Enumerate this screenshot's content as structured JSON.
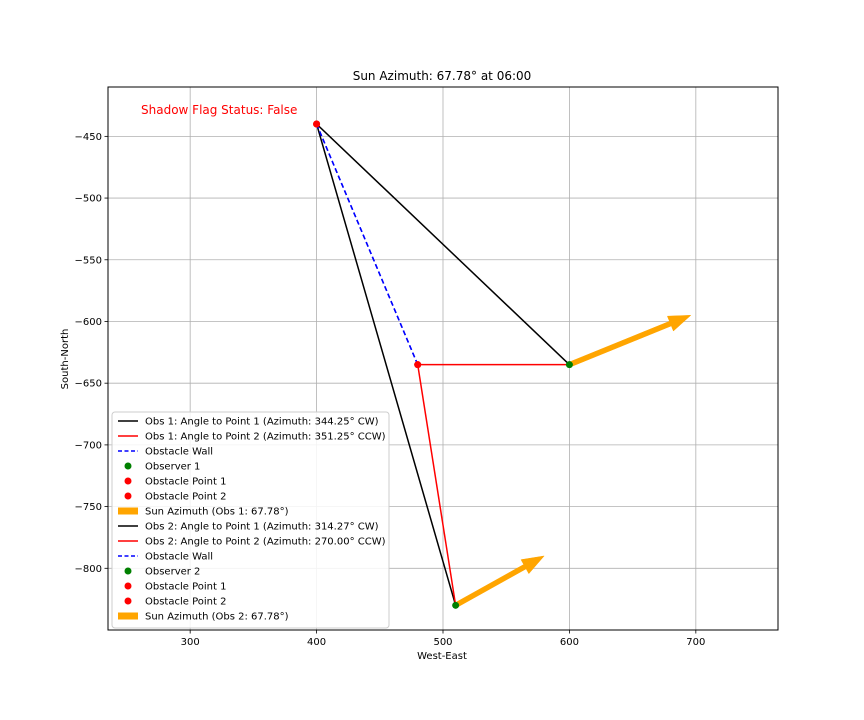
{
  "chart_data": {
    "type": "line",
    "title": "Sun Azimuth: 67.78° at 06:00",
    "xlabel": "West-East",
    "ylabel": "South-North",
    "xlim": [
      235,
      765
    ],
    "ylim": [
      -850,
      -410
    ],
    "xticks": [
      300,
      400,
      500,
      600,
      700
    ],
    "yticks": [
      -450,
      -500,
      -550,
      -600,
      -650,
      -700,
      -750,
      -800
    ],
    "grid": true,
    "legend_position": "lower-left",
    "annotation": {
      "text": "Shadow Flag Status: False",
      "color": "#ff0000"
    },
    "points": {
      "obstacle_1": {
        "x": 400,
        "y": -440
      },
      "obstacle_2": {
        "x": 480,
        "y": -635
      },
      "observer_1": {
        "x": 600,
        "y": -635
      },
      "observer_2": {
        "x": 510,
        "y": -830
      }
    },
    "arrows": [
      {
        "from": [
          600,
          -635
        ],
        "to": [
          696,
          -595
        ],
        "color": "#ffa500"
      },
      {
        "from": [
          510,
          -830
        ],
        "to": [
          580,
          -790
        ],
        "color": "#ffa500"
      }
    ],
    "series": [
      {
        "name": "Obs 1: Angle to Point 1 (Azimuth: 344.25° CW)",
        "kind": "line",
        "color": "#000000",
        "x": [
          600,
          400
        ],
        "y": [
          -635,
          -440
        ]
      },
      {
        "name": "Obs 1: Angle to Point 2 (Azimuth: 351.25° CCW)",
        "kind": "line",
        "color": "#ff0000",
        "x": [
          600,
          480
        ],
        "y": [
          -635,
          -635
        ]
      },
      {
        "name": "Obstacle Wall",
        "kind": "dashed",
        "color": "#0000ff",
        "x": [
          400,
          480
        ],
        "y": [
          -440,
          -635
        ]
      },
      {
        "name": "Observer 1",
        "kind": "point",
        "color": "#008000",
        "x": [
          600
        ],
        "y": [
          -635
        ]
      },
      {
        "name": "Obstacle Point 1",
        "kind": "point",
        "color": "#ff0000",
        "x": [
          400
        ],
        "y": [
          -440
        ]
      },
      {
        "name": "Obstacle Point 2",
        "kind": "point",
        "color": "#ff0000",
        "x": [
          480
        ],
        "y": [
          -635
        ]
      },
      {
        "name": "Sun Azimuth (Obs 1: 67.78°)",
        "kind": "arrow",
        "color": "#ffa500",
        "x": [
          600
        ],
        "y": [
          -635
        ]
      },
      {
        "name": "Obs 2: Angle to Point 1 (Azimuth: 314.27° CW)",
        "kind": "line",
        "color": "#000000",
        "x": [
          510,
          400
        ],
        "y": [
          -830,
          -440
        ]
      },
      {
        "name": "Obs 2: Angle to Point 2 (Azimuth: 270.00° CCW)",
        "kind": "line",
        "color": "#ff0000",
        "x": [
          510,
          480
        ],
        "y": [
          -830,
          -635
        ]
      },
      {
        "name": "Obstacle Wall",
        "kind": "dashed",
        "color": "#0000ff",
        "x": [
          400,
          480
        ],
        "y": [
          -440,
          -635
        ]
      },
      {
        "name": "Observer 2",
        "kind": "point",
        "color": "#008000",
        "x": [
          510
        ],
        "y": [
          -830
        ]
      },
      {
        "name": "Obstacle Point 1",
        "kind": "point",
        "color": "#ff0000",
        "x": [
          400
        ],
        "y": [
          -440
        ]
      },
      {
        "name": "Obstacle Point 2",
        "kind": "point",
        "color": "#ff0000",
        "x": [
          480
        ],
        "y": [
          -635
        ]
      },
      {
        "name": "Sun Azimuth (Obs 2: 67.78°)",
        "kind": "arrow",
        "color": "#ffa500",
        "x": [
          510
        ],
        "y": [
          -830
        ]
      }
    ]
  }
}
